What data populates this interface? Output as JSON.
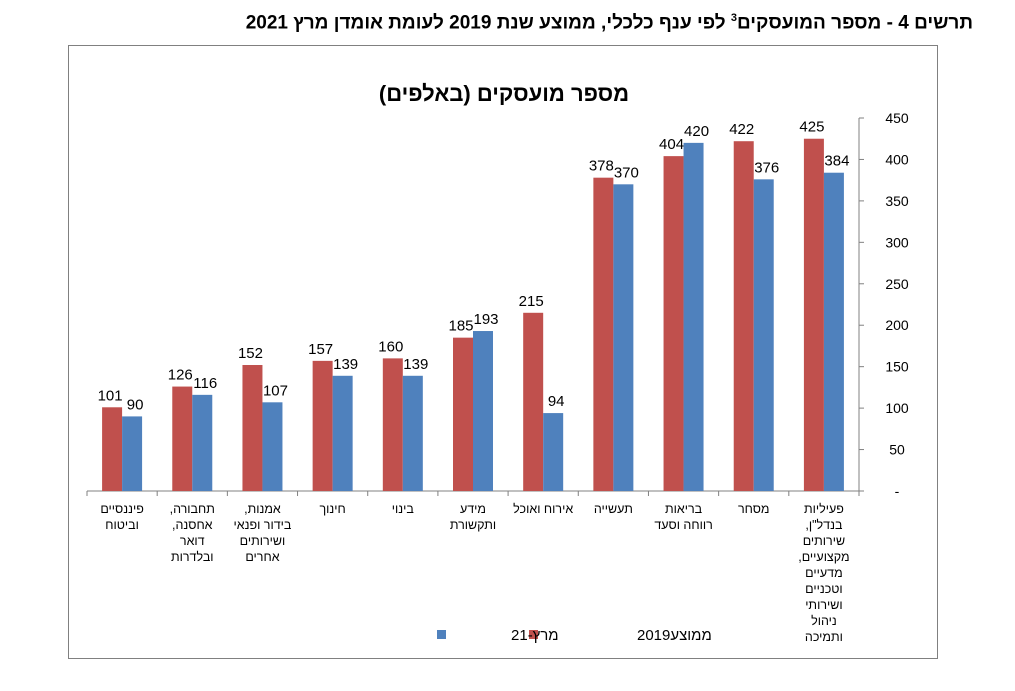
{
  "page": {
    "title_main": "תרשים 4 - מספר המועסקים",
    "title_sup": "3",
    "title_rest": " לפי ענף כלכלי, ממוצע שנת 2019 לעומת אומדן מרץ 2021"
  },
  "chart_data": {
    "type": "bar",
    "title": "מספר מועסקים (באלפים)",
    "categories": [
      [
        "פיננסיים",
        "וביטוח"
      ],
      [
        "תחבורה,",
        "אחסנה,",
        "דואר",
        "ובלדרות"
      ],
      [
        "אמנות,",
        "בידור ופנאי",
        "ושירותים",
        "אחרים"
      ],
      [
        "חינוך"
      ],
      [
        "בינוי"
      ],
      [
        "מידע",
        "ותקשורת"
      ],
      [
        "אירוח ואוכל"
      ],
      [
        "תעשייה"
      ],
      [
        "בריאות",
        "רווחה וסעד"
      ],
      [
        "מסחר"
      ],
      [
        "פעיליות",
        "בנדל\"ן,",
        "שירותים",
        "מקצועיים,",
        "מדעיים",
        "וטכניים",
        "ושירותי",
        "ניהול",
        "ותמיכה"
      ]
    ],
    "series": [
      {
        "name": "ממוצע2019",
        "color": "#c0504d",
        "values": [
          101,
          126,
          152,
          157,
          160,
          185,
          215,
          378,
          404,
          422,
          425
        ]
      },
      {
        "name": "מרץ-21",
        "color": "#4f81bd",
        "values": [
          90,
          116,
          107,
          139,
          139,
          193,
          94,
          370,
          420,
          376,
          384
        ]
      }
    ],
    "ylim": [
      0,
      450
    ],
    "yticks": [
      "-",
      "50",
      "100",
      "150",
      "200",
      "250",
      "300",
      "350",
      "400",
      "450"
    ],
    "y_axis_side": "right",
    "legend": "bottom",
    "grid": false
  }
}
